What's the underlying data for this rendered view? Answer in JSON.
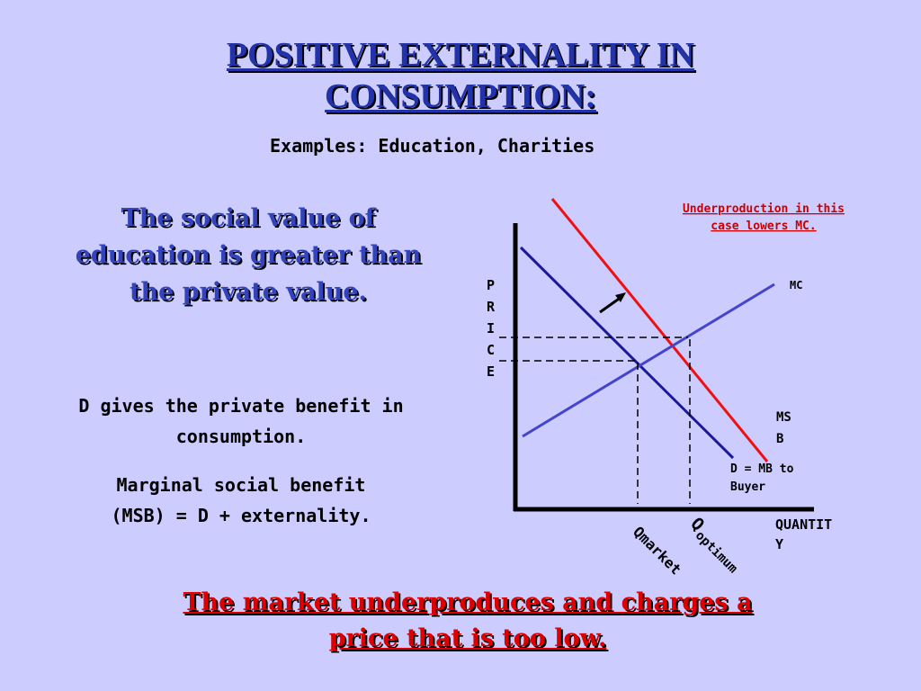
{
  "title": {
    "line1": "POSITIVE EXTERNALITY IN",
    "line2": "CONSUMPTION:"
  },
  "subtitle": "Examples:  Education, Charities",
  "left_heading": {
    "line1": "The social value of",
    "line2": "education is greater than",
    "line3": "the private value."
  },
  "left_body": {
    "para1_line1": "D gives the private benefit in",
    "para1_line2": "consumption.",
    "para2_line1": "Marginal social benefit",
    "para2_line2": "(MSB) = D + externality."
  },
  "diagram": {
    "annotation_line1": "Underproduction in this",
    "annotation_line2": "case lowers MC.",
    "y_axis_letters": [
      "P",
      "R",
      "I",
      "C",
      "E"
    ],
    "x_axis_line1": "QUANTIT",
    "x_axis_line2": "Y",
    "mc_label": "MC",
    "msb_line1": "MS",
    "msb_line2": "B",
    "d_line1": "D = MB to",
    "d_line2": "Buyer",
    "q_market": "Qmarket",
    "q_optimum_q": "Q",
    "q_optimum_sub": "optimum",
    "colors": {
      "msb": "#ee1111",
      "d": "#1a1a99",
      "mc": "#4444cc",
      "annotation": "#cc0000"
    }
  },
  "bottom": {
    "line1": "The market underproduces and charges a",
    "line2": "price that is too low."
  }
}
